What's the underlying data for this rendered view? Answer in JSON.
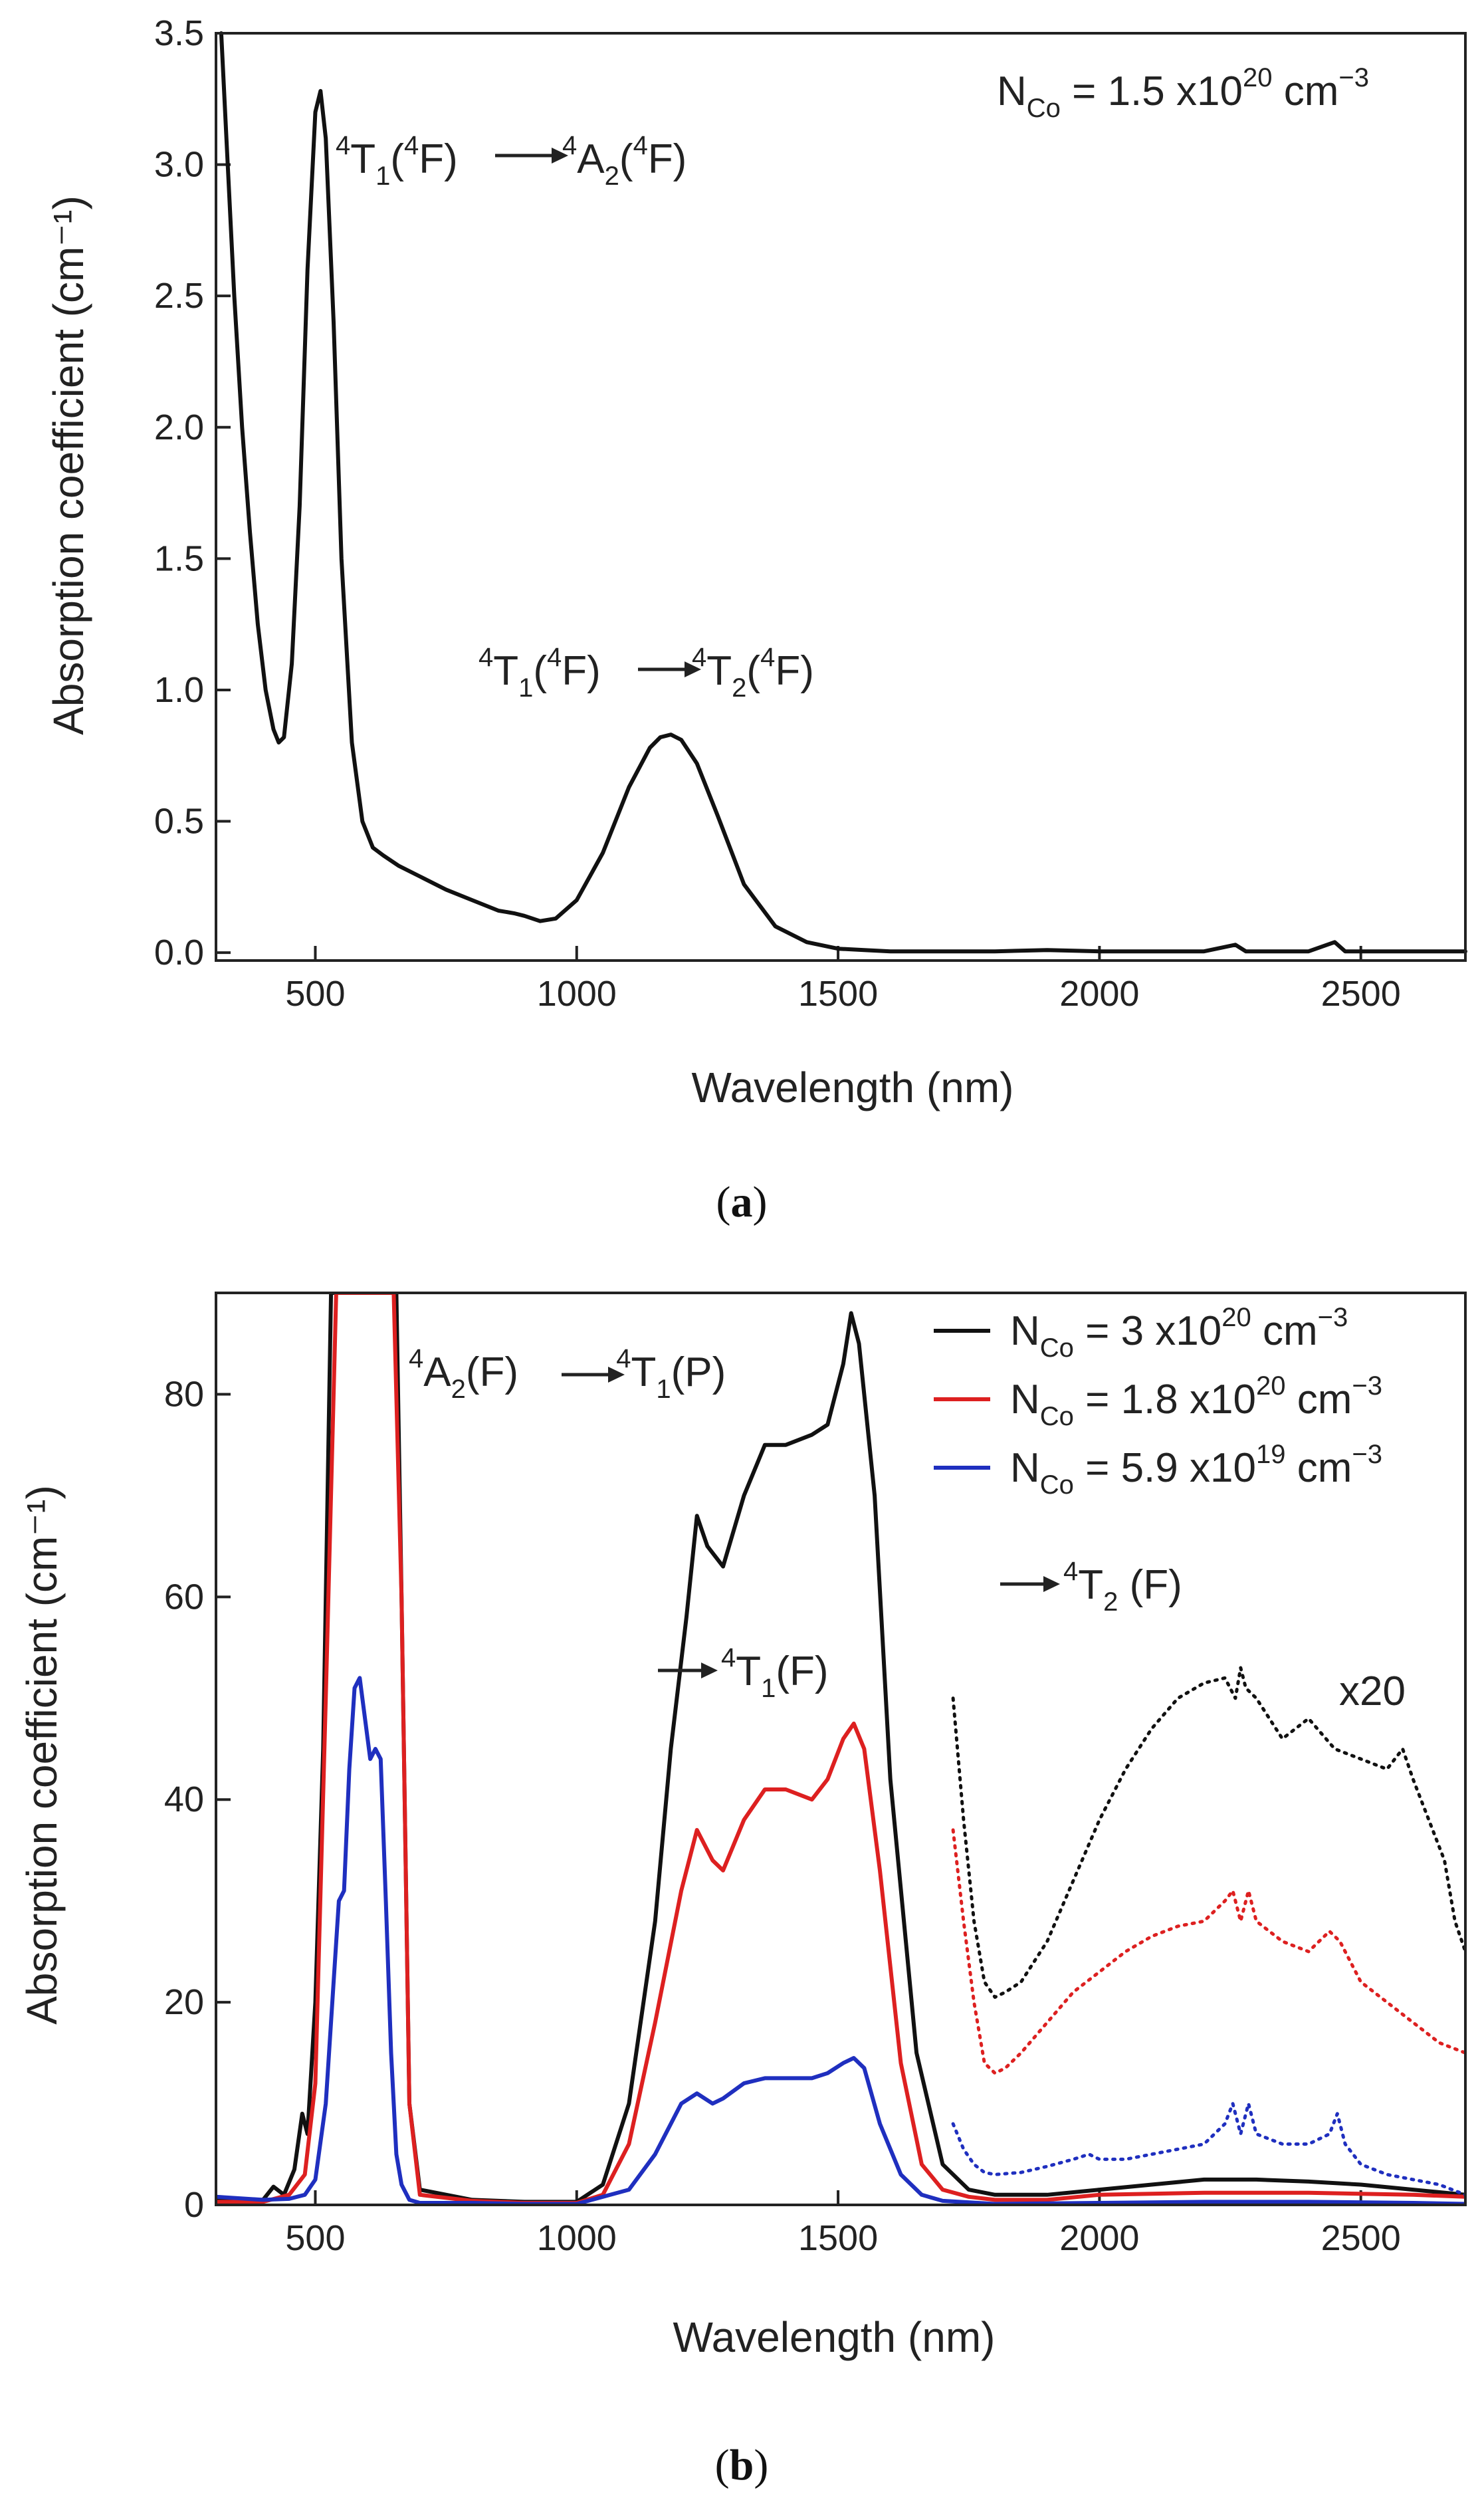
{
  "chart_data": [
    {
      "panel": "(a)",
      "panel_letter": "a",
      "type": "line",
      "xlabel": "Wavelength (nm)",
      "ylabel": "Absorption coefficient (cm⁻¹)",
      "xlim": [
        310,
        2700
      ],
      "ylim": [
        -0.03,
        3.5
      ],
      "xticks": [
        500,
        1000,
        1500,
        2000,
        2500
      ],
      "yticks": [
        0.0,
        0.5,
        1.0,
        1.5,
        2.0,
        2.5,
        3.0,
        3.5
      ],
      "ytick_labels": [
        "0.0",
        "0.5",
        "1.0",
        "1.5",
        "2.0",
        "2.5",
        "3.0",
        "3.5"
      ],
      "legend_text": {
        "prefix": "N",
        "sub": "Co",
        "mid": " = 1.5 x10",
        "exp": "20",
        "unit": " cm",
        "unit_exp": "−3"
      },
      "annotations": [
        {
          "id": "a2",
          "text": "⁴T₁(⁴F) → ⁴A₂(⁴F)"
        },
        {
          "id": "t2",
          "text": "⁴T₁(⁴F) → ⁴T₂(⁴F)"
        }
      ],
      "series": [
        {
          "color": "#111111",
          "x": [
            320,
            330,
            345,
            360,
            375,
            390,
            405,
            420,
            430,
            440,
            455,
            470,
            485,
            500,
            510,
            520,
            535,
            550,
            570,
            590,
            610,
            630,
            660,
            700,
            750,
            800,
            850,
            880,
            900,
            930,
            960,
            1000,
            1050,
            1100,
            1140,
            1160,
            1180,
            1200,
            1230,
            1270,
            1320,
            1380,
            1440,
            1500,
            1550,
            1600,
            1700,
            1800,
            1900,
            2000,
            2100,
            2200,
            2260,
            2280,
            2300,
            2400,
            2450,
            2470,
            2500,
            2600,
            2700
          ],
          "y": [
            3.5,
            3.1,
            2.5,
            2.0,
            1.6,
            1.25,
            1.0,
            0.85,
            0.8,
            0.82,
            1.1,
            1.7,
            2.6,
            3.2,
            3.28,
            3.1,
            2.4,
            1.5,
            0.8,
            0.5,
            0.4,
            0.37,
            0.33,
            0.29,
            0.24,
            0.2,
            0.16,
            0.15,
            0.14,
            0.12,
            0.13,
            0.2,
            0.38,
            0.63,
            0.78,
            0.82,
            0.83,
            0.81,
            0.72,
            0.52,
            0.26,
            0.1,
            0.04,
            0.015,
            0.01,
            0.005,
            0.005,
            0.005,
            0.01,
            0.005,
            0.005,
            0.005,
            0.03,
            0.005,
            0.005,
            0.005,
            0.04,
            0.005,
            0.005,
            0.005,
            0.005
          ]
        }
      ]
    },
    {
      "panel": "(b)",
      "panel_letter": "b",
      "type": "line",
      "xlabel": "Wavelength (nm)",
      "ylabel": "Absorption coefficient (cm⁻¹)",
      "xlim": [
        310,
        2700
      ],
      "ylim": [
        0,
        90
      ],
      "xticks": [
        500,
        1000,
        1500,
        2000,
        2500
      ],
      "yticks": [
        0,
        20,
        40,
        60,
        80
      ],
      "ytick_labels": [
        "0",
        "20",
        "40",
        "60",
        "80"
      ],
      "annotations": [
        {
          "id": "p",
          "text": "⁴A₂(F) → ⁴T₁(P)"
        },
        {
          "id": "t1",
          "text": "→ ⁴T₁(F)"
        },
        {
          "id": "t2",
          "text": "→ ⁴T₂ (F)"
        },
        {
          "id": "x20",
          "text": "x20"
        }
      ],
      "legend_placement": "top-right",
      "series": [
        {
          "legend": {
            "prefix": "N",
            "sub": "Co",
            "mid": " = 3 x10",
            "exp": "20",
            "unit": " cm",
            "unit_exp": "−3"
          },
          "color": "#111111",
          "style": "solid",
          "x": [
            310,
            400,
            420,
            440,
            460,
            475,
            485,
            500,
            515,
            530,
            545,
            560,
            600,
            640,
            655,
            665,
            680,
            700,
            800,
            900,
            1000,
            1050,
            1100,
            1150,
            1180,
            1210,
            1230,
            1250,
            1280,
            1320,
            1360,
            1400,
            1450,
            1480,
            1510,
            1525,
            1540,
            1570,
            1600,
            1650,
            1700,
            1750,
            1800,
            1900,
            2000,
            2100,
            2200,
            2300,
            2400,
            2500,
            2600,
            2700
          ],
          "y": [
            0.5,
            0.5,
            1.8,
            1.0,
            3.5,
            9,
            7,
            20,
            45,
            90,
            90,
            90,
            90,
            90,
            90,
            60,
            10,
            1.5,
            0.5,
            0.3,
            0.3,
            2,
            10,
            28,
            45,
            58,
            68,
            65,
            63,
            70,
            75,
            75,
            76,
            77,
            83,
            88,
            85,
            70,
            42,
            15,
            4,
            1.5,
            1.0,
            1.0,
            1.5,
            2.0,
            2.5,
            2.5,
            2.3,
            2.0,
            1.5,
            1.0
          ]
        },
        {
          "legend": {
            "prefix": "N",
            "sub": "Co",
            "mid": " = 1.8 x10",
            "exp": "20",
            "unit": " cm",
            "unit_exp": "−3"
          },
          "color": "#dd2020",
          "style": "solid",
          "x": [
            310,
            400,
            450,
            480,
            500,
            520,
            540,
            560,
            600,
            650,
            665,
            680,
            700,
            800,
            900,
            1000,
            1050,
            1100,
            1150,
            1200,
            1230,
            1260,
            1280,
            1320,
            1360,
            1400,
            1450,
            1480,
            1510,
            1530,
            1550,
            1580,
            1620,
            1660,
            1700,
            1750,
            1800,
            1900,
            2000,
            2200,
            2400,
            2600,
            2700
          ],
          "y": [
            0.3,
            0.3,
            1.0,
            3.0,
            12,
            50,
            90,
            90,
            90,
            90,
            60,
            10,
            1.0,
            0.4,
            0.2,
            0.2,
            1,
            6,
            18,
            31,
            37,
            34,
            33,
            38,
            41,
            41,
            40,
            42,
            46,
            47.5,
            45,
            33,
            14,
            4,
            1.5,
            0.8,
            0.5,
            0.5,
            1.0,
            1.2,
            1.2,
            1.0,
            0.8
          ]
        },
        {
          "legend": {
            "prefix": "N",
            "sub": "Co",
            "mid": " = 5.9 x10",
            "exp": "19",
            "unit": " cm",
            "unit_exp": "−3"
          },
          "color": "#1f2fbf",
          "style": "solid",
          "x": [
            310,
            400,
            450,
            480,
            500,
            520,
            535,
            545,
            555,
            565,
            575,
            585,
            595,
            605,
            615,
            625,
            635,
            645,
            655,
            665,
            680,
            700,
            800,
            900,
            1000,
            1100,
            1150,
            1200,
            1230,
            1260,
            1280,
            1320,
            1360,
            1400,
            1450,
            1480,
            1510,
            1530,
            1550,
            1580,
            1620,
            1660,
            1700,
            1800,
            2000,
            2200,
            2400,
            2600,
            2700
          ],
          "y": [
            0.8,
            0.5,
            0.6,
            1.0,
            2.5,
            10,
            22,
            30,
            31,
            43,
            51,
            52,
            48,
            44,
            45,
            44,
            30,
            15,
            5,
            2,
            0.5,
            0.2,
            0.2,
            0.1,
            0.1,
            1.5,
            5,
            10,
            11,
            10,
            10.5,
            12,
            12.5,
            12.5,
            12.5,
            13,
            14,
            14.5,
            13.5,
            8,
            3,
            1,
            0.4,
            0.1,
            0.2,
            0.3,
            0.3,
            0.2,
            0.1
          ]
        },
        {
          "name": "x20",
          "color": "#111111",
          "style": "dotted",
          "x": [
            1720,
            1740,
            1760,
            1780,
            1800,
            1820,
            1850,
            1900,
            1950,
            2000,
            2050,
            2100,
            2150,
            2200,
            2240,
            2260,
            2270,
            2280,
            2300,
            2350,
            2400,
            2450,
            2500,
            2550,
            2580,
            2600,
            2630,
            2660,
            2680,
            2700
          ],
          "y": [
            50,
            38,
            28,
            22,
            20.5,
            21,
            22,
            26,
            32,
            38,
            43,
            47,
            50,
            51.5,
            52,
            50,
            53,
            51,
            50,
            46,
            48,
            45,
            44,
            43,
            45,
            42,
            38,
            34,
            28,
            25
          ]
        },
        {
          "name": "x20",
          "color": "#dd2020",
          "style": "dotted",
          "x": [
            1720,
            1740,
            1760,
            1780,
            1800,
            1820,
            1850,
            1900,
            1950,
            2000,
            2050,
            2100,
            2150,
            2200,
            2240,
            2255,
            2270,
            2285,
            2300,
            2350,
            2400,
            2440,
            2460,
            2500,
            2550,
            2600,
            2650,
            2700
          ],
          "y": [
            37,
            28,
            20,
            14,
            13,
            13.5,
            15,
            18,
            21,
            23,
            25,
            26.5,
            27.5,
            28,
            30,
            31,
            28,
            31,
            28,
            26,
            25,
            27,
            26,
            22,
            20,
            18,
            16,
            15
          ]
        },
        {
          "name": "x20",
          "color": "#1f2fbf",
          "style": "dotted",
          "x": [
            1720,
            1740,
            1760,
            1780,
            1800,
            1850,
            1900,
            1950,
            1980,
            2000,
            2050,
            2100,
            2150,
            2200,
            2240,
            2255,
            2270,
            2285,
            2300,
            2350,
            2400,
            2440,
            2455,
            2470,
            2500,
            2550,
            2600,
            2650,
            2700
          ],
          "y": [
            8,
            5.5,
            4,
            3.2,
            3.0,
            3.2,
            3.8,
            4.5,
            5,
            4.5,
            4.5,
            5,
            5.5,
            6,
            8,
            10,
            7,
            10,
            7,
            6,
            6,
            7,
            9,
            6,
            4,
            3,
            2.5,
            2,
            1
          ]
        }
      ]
    }
  ]
}
